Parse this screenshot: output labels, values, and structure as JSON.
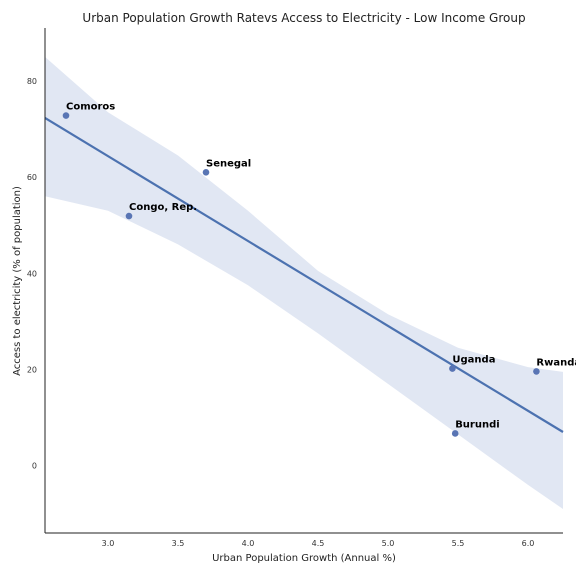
{
  "chart_data": {
    "type": "scatter",
    "title": "Urban Population Growth Ratevs Access to Electricity - Low Income Group",
    "xlabel": "Urban Population Growth (Annual %)",
    "ylabel": "Access to electricity (% of population)",
    "xlim": [
      2.55,
      6.25
    ],
    "ylim": [
      -14,
      91
    ],
    "x_ticks": [
      "3.0",
      "3.5",
      "4.0",
      "4.5",
      "5.0",
      "5.5",
      "6.0"
    ],
    "y_ticks": [
      "0",
      "20",
      "40",
      "60",
      "80"
    ],
    "points": [
      {
        "label": "Comoros",
        "x": 2.7,
        "y": 72.8
      },
      {
        "label": "Senegal",
        "x": 3.7,
        "y": 61.0
      },
      {
        "label": "Congo, Rep.",
        "x": 3.15,
        "y": 51.9
      },
      {
        "label": "Uganda",
        "x": 5.46,
        "y": 20.2
      },
      {
        "label": "Rwanda",
        "x": 6.06,
        "y": 19.6
      },
      {
        "label": "Burundi",
        "x": 5.48,
        "y": 6.7
      }
    ],
    "regression": {
      "x": [
        2.55,
        6.25
      ],
      "y": [
        72.3,
        7.0
      ]
    },
    "confidence_band": {
      "x": [
        2.55,
        3.0,
        3.5,
        4.0,
        4.5,
        5.0,
        5.5,
        6.0,
        6.25
      ],
      "upper": [
        85.0,
        73.5,
        64.5,
        53.0,
        40.5,
        31.5,
        24.5,
        20.5,
        19.5
      ],
      "lower": [
        56.0,
        53.0,
        46.0,
        37.5,
        27.5,
        17.0,
        6.5,
        -4.0,
        -9.0
      ]
    },
    "colors": {
      "point": "#5975b4",
      "line": "#4c72b0",
      "band": "#e1e7f3",
      "axis": "#222222"
    },
    "grid": false
  }
}
